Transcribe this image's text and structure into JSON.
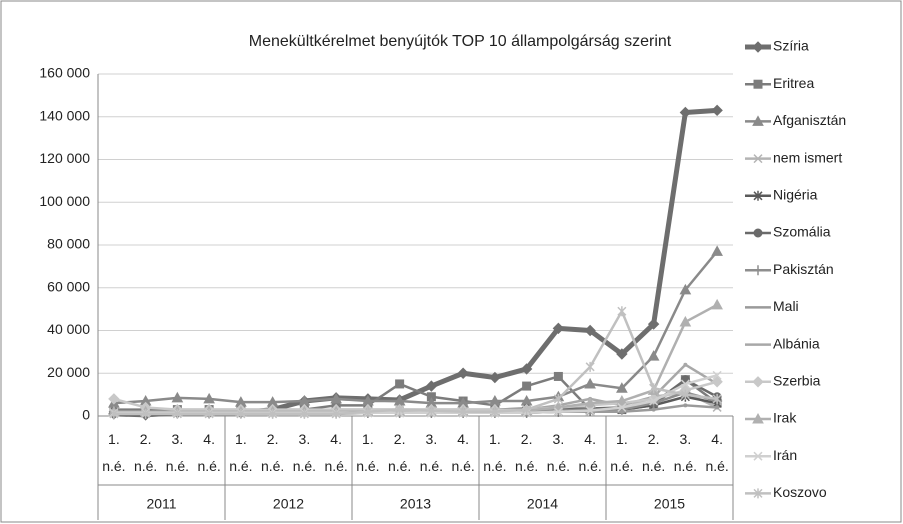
{
  "chart_data": {
    "type": "line",
    "title": "Menekültkérelmet benyújtók TOP 10 állampolgárság szerint",
    "categories": [
      "1. n.é.",
      "2. n.é.",
      "3. n.é.",
      "4. n.é.",
      "1. n.é.",
      "2. n.é.",
      "3. n.é.",
      "4. n.é.",
      "1. n.é.",
      "2. n.é.",
      "3. n.é.",
      "4. n.é.",
      "1. n.é.",
      "2. n.é.",
      "3. n.é.",
      "4. n.é.",
      "1. n.é.",
      "2. n.é.",
      "3. n.é.",
      "4. n.é."
    ],
    "years": [
      "2011",
      "2012",
      "2013",
      "2014",
      "2015"
    ],
    "ylim": [
      0,
      160000
    ],
    "yticks": [
      0,
      {
        "value": 20000,
        "label": "20 000"
      },
      {
        "value": 40000,
        "label": "40 000"
      },
      {
        "value": 60000,
        "label": "60 000"
      },
      {
        "value": 80000,
        "label": "80 000"
      },
      {
        "value": 100000,
        "label": "100 000"
      },
      {
        "value": 120000,
        "label": "120 000"
      },
      {
        "value": 140000,
        "label": "140 000"
      },
      {
        "value": 160000,
        "label": "160 000"
      }
    ],
    "grid": true,
    "legend": "right",
    "series": [
      {
        "name": "Szíria",
        "color": "#6e6e6e",
        "marker": "diamond",
        "values": [
          1000,
          500,
          1500,
          1500,
          1500,
          3000,
          7000,
          8500,
          8000,
          7500,
          14000,
          20000,
          18000,
          22000,
          41000,
          40000,
          29000,
          43000,
          142000,
          143000
        ]
      },
      {
        "name": "Eritrea",
        "color": "#7c7c7c",
        "marker": "square",
        "values": [
          3000,
          3000,
          3000,
          3000,
          3000,
          3000,
          3000,
          5000,
          5000,
          15000,
          9000,
          7000,
          5000,
          14000,
          18500,
          3000,
          3000,
          5000,
          17000,
          6000
        ]
      },
      {
        "name": "Afganisztán",
        "color": "#8a8a8a",
        "marker": "triangle",
        "values": [
          6000,
          7000,
          8500,
          8000,
          6500,
          6500,
          7000,
          8000,
          7000,
          7000,
          6000,
          6000,
          7000,
          7000,
          9000,
          15000,
          13000,
          28000,
          59000,
          77000
        ]
      },
      {
        "name": "nem ismert",
        "color": "#b4b4b4",
        "marker": "x",
        "values": [
          2000,
          2000,
          2000,
          2000,
          2000,
          2000,
          2000,
          2000,
          2000,
          2000,
          2000,
          2000,
          2000,
          2000,
          2000,
          2000,
          3000,
          9000,
          11000,
          4000
        ]
      },
      {
        "name": "Nigéria",
        "color": "#5a5a5a",
        "marker": "star",
        "values": [
          1500,
          1500,
          1500,
          1500,
          1500,
          1500,
          1500,
          1500,
          1500,
          1500,
          1500,
          1500,
          1500,
          1500,
          2000,
          2500,
          3000,
          5000,
          9000,
          6000
        ]
      },
      {
        "name": "Szomália",
        "color": "#6a6a6a",
        "marker": "circle",
        "values": [
          2000,
          2000,
          2000,
          2000,
          2000,
          2000,
          2500,
          3000,
          3000,
          3000,
          3000,
          3000,
          3000,
          3500,
          3500,
          3500,
          4000,
          6000,
          17000,
          9000
        ]
      },
      {
        "name": "Pakisztán",
        "color": "#8e8e8e",
        "marker": "plus",
        "values": [
          2000,
          2000,
          2000,
          2000,
          2000,
          2000,
          2000,
          2000,
          2000,
          2000,
          2000,
          2000,
          2000,
          2000,
          2500,
          3000,
          3000,
          6000,
          11000,
          7000
        ]
      },
      {
        "name": "Mali",
        "color": "#9a9a9a",
        "marker": "none",
        "values": [
          1000,
          1000,
          1000,
          1000,
          1000,
          1000,
          1000,
          1000,
          1500,
          1500,
          1500,
          1500,
          1500,
          1500,
          2000,
          2000,
          2000,
          3000,
          5000,
          4000
        ]
      },
      {
        "name": "Albánia",
        "color": "#a8a8a8",
        "marker": "none",
        "values": [
          2000,
          2000,
          2000,
          2000,
          2000,
          2000,
          2000,
          2000,
          2000,
          2000,
          2000,
          2000,
          2000,
          3000,
          5000,
          8000,
          5000,
          9000,
          24000,
          15000
        ]
      },
      {
        "name": "Szerbia",
        "color": "#c8c8c8",
        "marker": "diamond",
        "values": [
          8000,
          4000,
          3000,
          3000,
          3000,
          3000,
          3000,
          3000,
          3000,
          3000,
          3000,
          3000,
          3000,
          3000,
          4000,
          5000,
          6000,
          8000,
          12000,
          16000
        ]
      },
      {
        "name": "Irak",
        "color": "#b0b0b0",
        "marker": "triangle",
        "values": [
          2000,
          2000,
          2000,
          2000,
          2000,
          2000,
          2000,
          2000,
          2000,
          2000,
          2000,
          2000,
          2000,
          2500,
          4000,
          6000,
          7000,
          12000,
          44000,
          52000
        ]
      },
      {
        "name": "Irán",
        "color": "#d0d0d0",
        "marker": "x",
        "values": [
          1500,
          1500,
          1500,
          1500,
          1500,
          1500,
          1500,
          1500,
          1500,
          1500,
          1500,
          1500,
          1500,
          1500,
          2000,
          2500,
          4000,
          7000,
          15000,
          19000
        ]
      },
      {
        "name": "Koszovo",
        "color": "#c0c0c0",
        "marker": "star",
        "values": [
          1000,
          1000,
          1000,
          1000,
          1000,
          1000,
          1000,
          1000,
          2000,
          3000,
          2500,
          2000,
          2000,
          3000,
          8000,
          23000,
          49000,
          13000,
          10000,
          8000
        ]
      }
    ]
  }
}
